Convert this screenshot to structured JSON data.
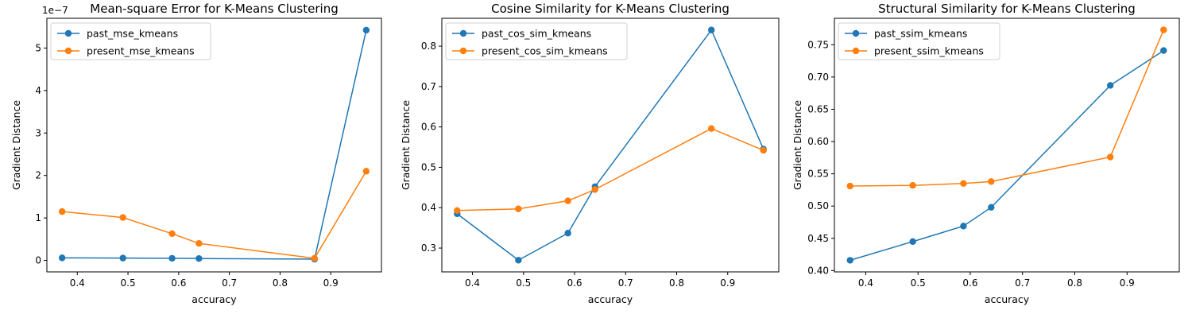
{
  "chart_data": [
    {
      "type": "line",
      "title": "Mean-square Error for K-Means Clustering",
      "xlabel": "accuracy",
      "ylabel": "Gradient Distance",
      "y_scale_label": "1e−7",
      "xlim": [
        0.34,
        1.0
      ],
      "ylim": [
        -0.27,
        5.7
      ],
      "x_ticks": [
        0.4,
        0.5,
        0.6,
        0.7,
        0.8,
        0.9
      ],
      "x_tick_labels": [
        "0.4",
        "0.5",
        "0.6",
        "0.7",
        "0.8",
        "0.9"
      ],
      "y_ticks": [
        0,
        1,
        2,
        3,
        4,
        5
      ],
      "y_tick_labels": [
        "0",
        "1",
        "2",
        "3",
        "4",
        "5"
      ],
      "x": [
        0.37,
        0.49,
        0.587,
        0.64,
        0.868,
        0.97
      ],
      "series": [
        {
          "name": "past_mse_kmeans",
          "color": "#1f77b4",
          "values": [
            0.06,
            0.055,
            0.05,
            0.045,
            0.03,
            5.42
          ]
        },
        {
          "name": "present_mse_kmeans",
          "color": "#ff7f0e",
          "values": [
            1.15,
            1.01,
            0.63,
            0.4,
            0.05,
            2.1
          ]
        }
      ],
      "legend": "top-left",
      "grid": false
    },
    {
      "type": "line",
      "title": "Cosine Similarity for K-Means Clustering",
      "xlabel": "accuracy",
      "ylabel": "Gradient Distance",
      "y_scale_label": "",
      "xlim": [
        0.34,
        1.0
      ],
      "ylim": [
        0.241,
        0.869
      ],
      "x_ticks": [
        0.4,
        0.5,
        0.6,
        0.7,
        0.8,
        0.9
      ],
      "x_tick_labels": [
        "0.4",
        "0.5",
        "0.6",
        "0.7",
        "0.8",
        "0.9"
      ],
      "y_ticks": [
        0.3,
        0.4,
        0.5,
        0.6,
        0.7,
        0.8
      ],
      "y_tick_labels": [
        "0.3",
        "0.4",
        "0.5",
        "0.6",
        "0.7",
        "0.8"
      ],
      "x": [
        0.37,
        0.49,
        0.587,
        0.64,
        0.868,
        0.97
      ],
      "series": [
        {
          "name": "past_cos_sim_kmeans",
          "color": "#1f77b4",
          "values": [
            0.385,
            0.27,
            0.337,
            0.452,
            0.84,
            0.545
          ]
        },
        {
          "name": "present_cos_sim_kmeans",
          "color": "#ff7f0e",
          "values": [
            0.393,
            0.397,
            0.417,
            0.445,
            0.596,
            0.542
          ]
        }
      ],
      "legend": "top-left",
      "grid": false
    },
    {
      "type": "line",
      "title": "Structural Similarity for K-Means Clustering",
      "xlabel": "accuracy",
      "ylabel": "Gradient Distance",
      "y_scale_label": "",
      "xlim": [
        0.34,
        1.0
      ],
      "ylim": [
        0.398,
        0.791
      ],
      "x_ticks": [
        0.4,
        0.5,
        0.6,
        0.7,
        0.8,
        0.9
      ],
      "x_tick_labels": [
        "0.4",
        "0.5",
        "0.6",
        "0.7",
        "0.8",
        "0.9"
      ],
      "y_ticks": [
        0.4,
        0.45,
        0.5,
        0.55,
        0.6,
        0.65,
        0.7,
        0.75
      ],
      "y_tick_labels": [
        "0.40",
        "0.45",
        "0.50",
        "0.55",
        "0.60",
        "0.65",
        "0.70",
        "0.75"
      ],
      "x": [
        0.37,
        0.49,
        0.587,
        0.64,
        0.868,
        0.97
      ],
      "series": [
        {
          "name": "past_ssim_kmeans",
          "color": "#1f77b4",
          "values": [
            0.416,
            0.445,
            0.469,
            0.498,
            0.687,
            0.741
          ]
        },
        {
          "name": "present_ssim_kmeans",
          "color": "#ff7f0e",
          "values": [
            0.531,
            0.532,
            0.535,
            0.538,
            0.576,
            0.773
          ]
        }
      ],
      "legend": "top-left",
      "grid": false
    }
  ]
}
